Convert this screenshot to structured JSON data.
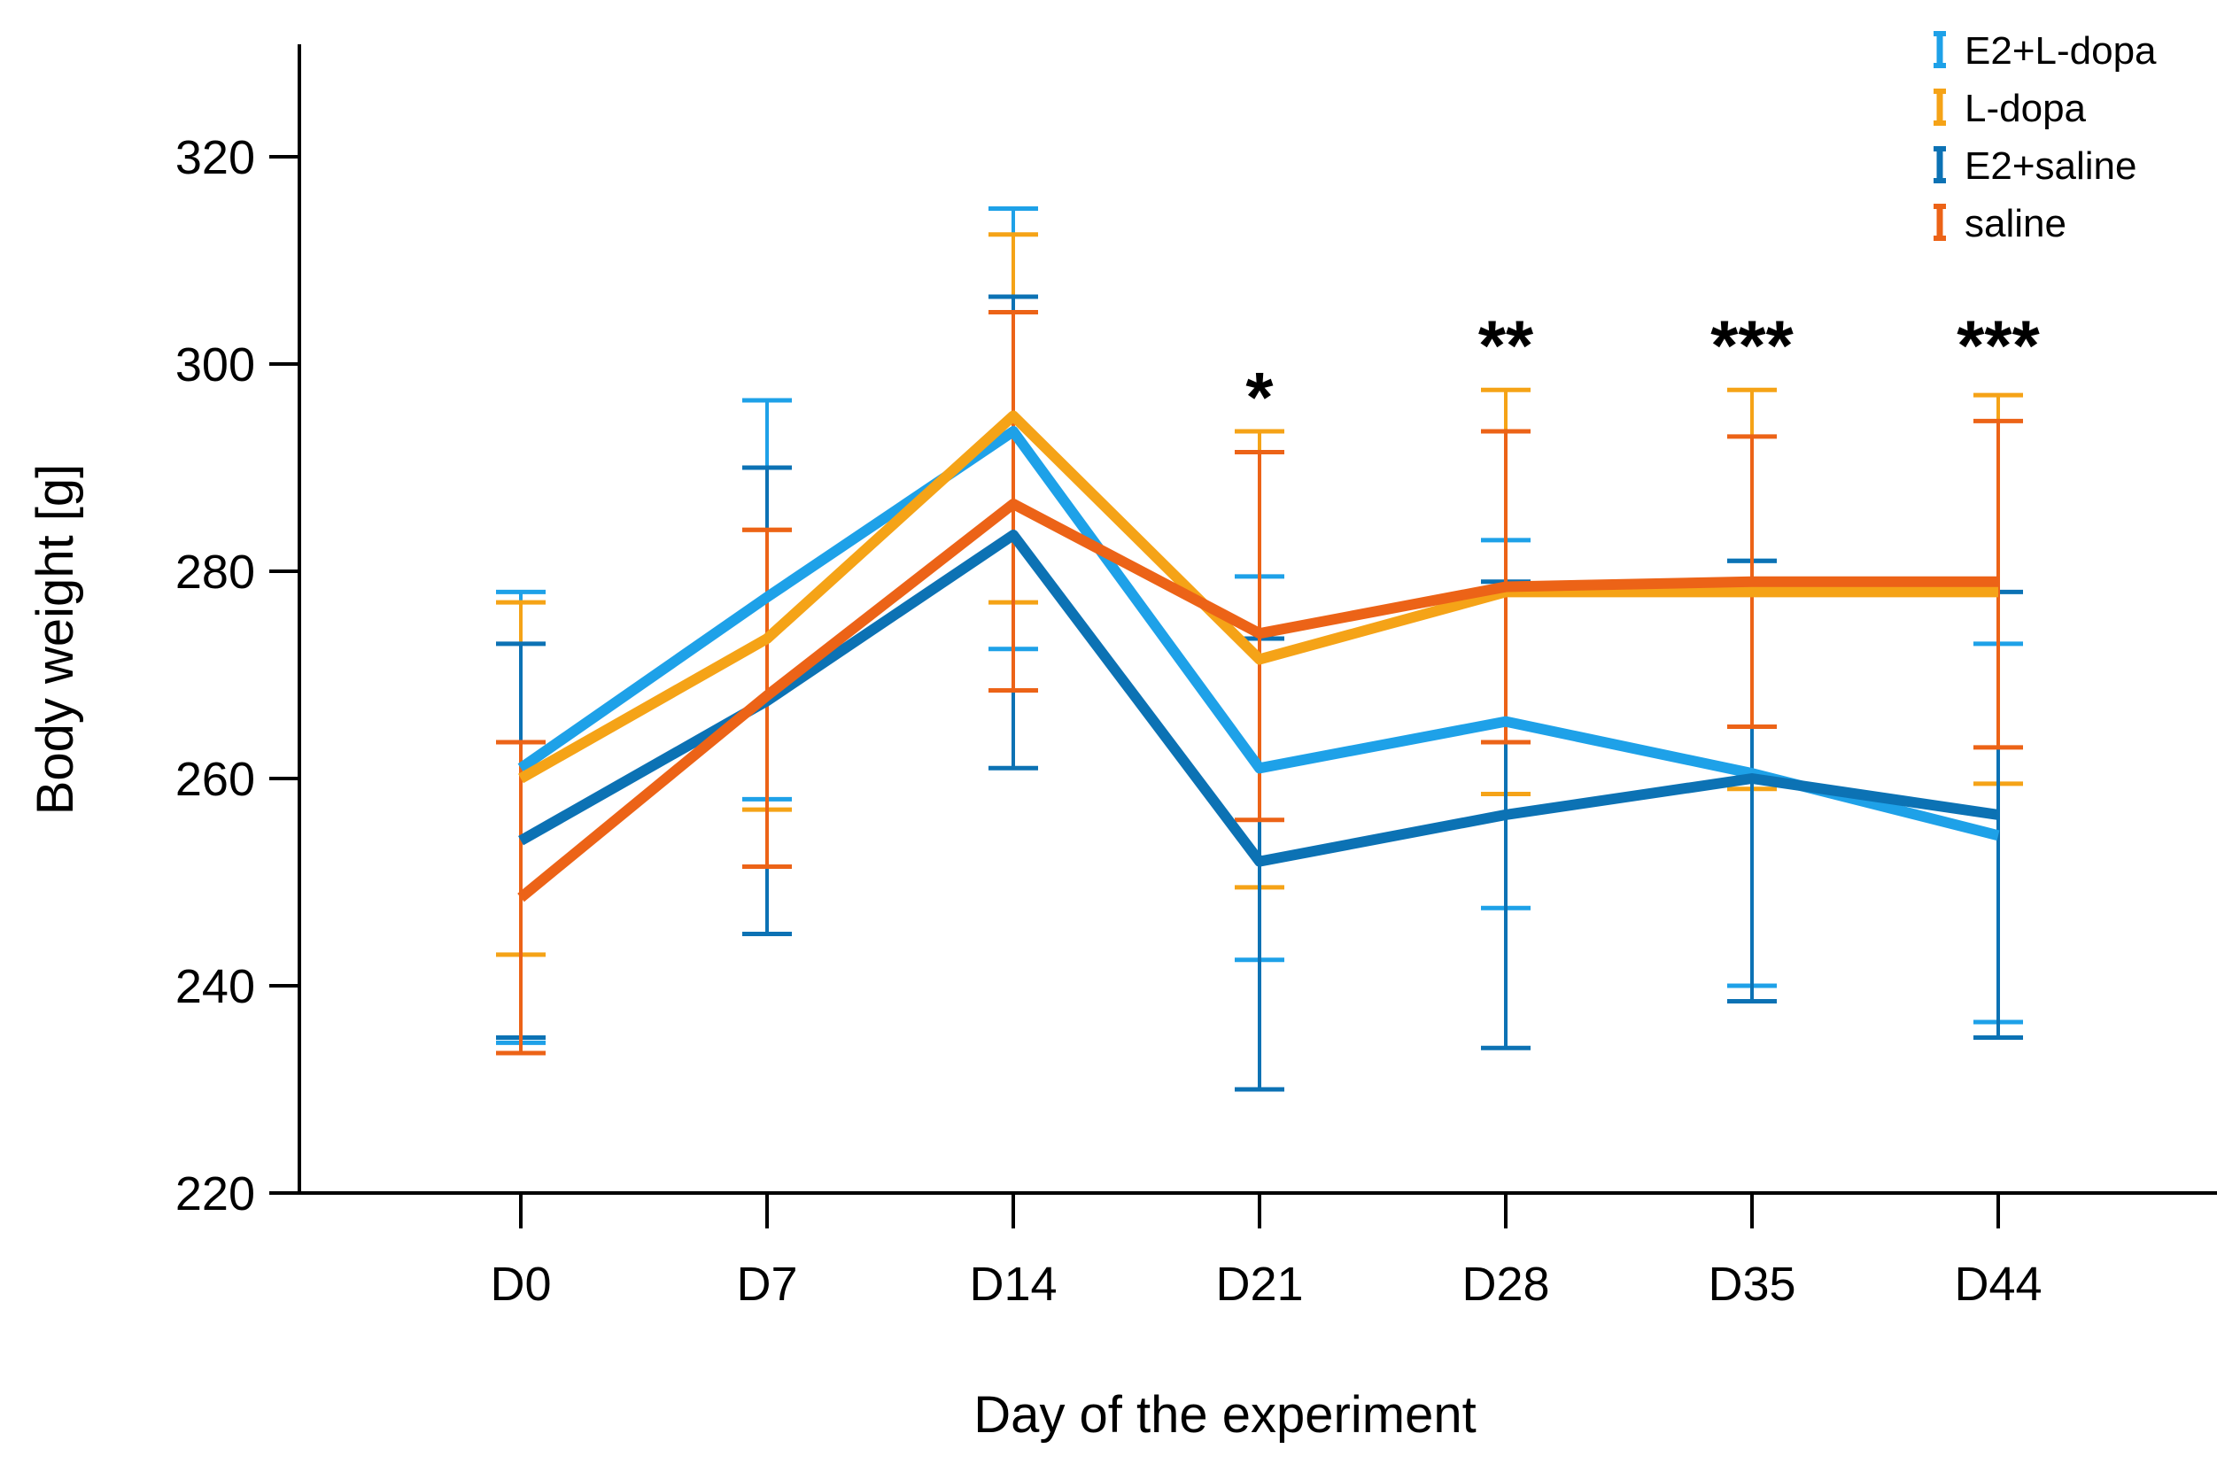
{
  "chart_data": {
    "type": "line",
    "title": "",
    "xlabel": "Day of the experiment",
    "ylabel": "Body weight [g]",
    "ylim": [
      220,
      330
    ],
    "yticks": [
      220,
      240,
      260,
      280,
      300,
      320
    ],
    "categories": [
      "D0",
      "D7",
      "D14",
      "D21",
      "D28",
      "D35",
      "D44"
    ],
    "legend_position": "top-right",
    "series": [
      {
        "name": "E2+L-dopa",
        "color": "#1ea1e8",
        "values": [
          261,
          277.5,
          293.5,
          261,
          265.5,
          260.5,
          254.5
        ],
        "err_low": [
          234.5,
          258,
          272.5,
          242.5,
          247.5,
          240,
          236.5
        ],
        "err_high": [
          278,
          296.5,
          315,
          279.5,
          283,
          281,
          273
        ]
      },
      {
        "name": "L-dopa",
        "color": "#f5a317",
        "values": [
          260,
          273.5,
          295,
          271.5,
          278,
          278,
          278
        ],
        "err_low": [
          243,
          257,
          277,
          249.5,
          258.5,
          259,
          259.5
        ],
        "err_high": [
          277,
          284,
          312.5,
          293.5,
          297.5,
          297.5,
          297
        ]
      },
      {
        "name": "E2+saline",
        "color": "#0c72b4",
        "values": [
          254,
          267.5,
          283.5,
          252,
          256.5,
          260,
          256.5
        ],
        "err_low": [
          235,
          245,
          261,
          230,
          234,
          238.5,
          235
        ],
        "err_high": [
          273,
          290,
          306.5,
          273.5,
          279,
          281,
          278
        ]
      },
      {
        "name": "saline",
        "color": "#ec6317",
        "values": [
          248.5,
          268,
          286.5,
          274,
          278.5,
          279,
          279
        ],
        "err_low": [
          233.5,
          251.5,
          268.5,
          256,
          263.5,
          265,
          263
        ],
        "err_high": [
          263.5,
          284,
          305,
          291.5,
          293.5,
          293,
          294.5
        ]
      }
    ],
    "annotations": [
      {
        "category": "D21",
        "text": "*",
        "y": 297
      },
      {
        "category": "D28",
        "text": "**",
        "y": 302
      },
      {
        "category": "D35",
        "text": "***",
        "y": 302
      },
      {
        "category": "D44",
        "text": "***",
        "y": 302
      }
    ]
  }
}
